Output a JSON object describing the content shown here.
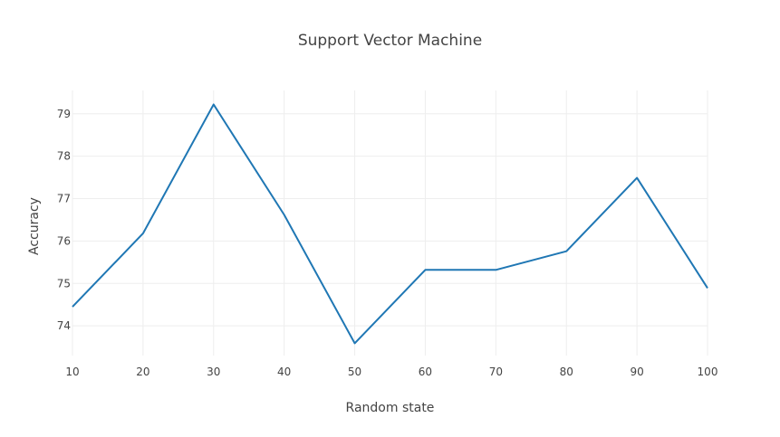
{
  "chart_data": {
    "type": "line",
    "title": "Support Vector Machine",
    "xlabel": "Random state",
    "ylabel": "Accuracy",
    "x": [
      10,
      20,
      30,
      40,
      50,
      60,
      70,
      80,
      90,
      100
    ],
    "series": [
      {
        "values": [
          74.45,
          76.18,
          79.22,
          76.62,
          73.59,
          75.32,
          75.32,
          75.76,
          77.49,
          74.89
        ]
      }
    ],
    "xlim": [
      10,
      100
    ],
    "ylim": [
      73.3,
      79.55
    ],
    "x_ticks": [
      10,
      20,
      30,
      40,
      50,
      60,
      70,
      80,
      90,
      100
    ],
    "y_ticks": [
      74,
      75,
      76,
      77,
      78,
      79
    ],
    "grid": true,
    "line_color": "#1f77b4"
  }
}
